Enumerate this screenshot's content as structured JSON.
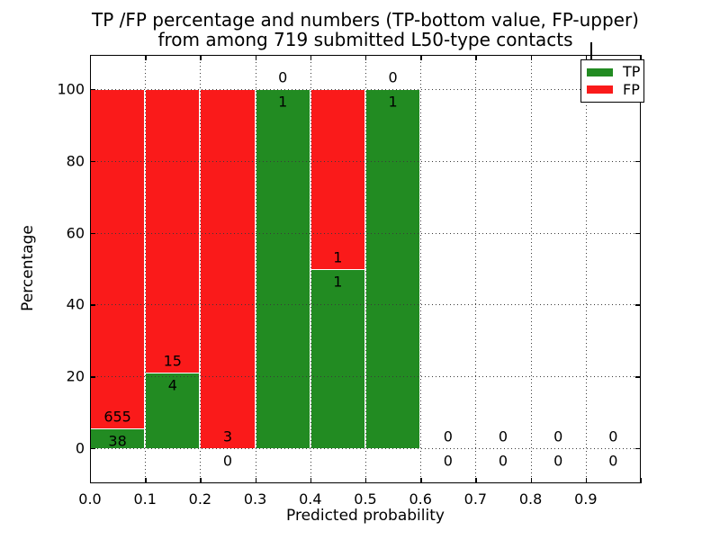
{
  "title": {
    "line1": "TP /FP percentage and numbers (TP-bottom value, FP-upper)",
    "line2": "from among 719 submitted L50-type contacts"
  },
  "chart_data": {
    "type": "bar",
    "stacked": true,
    "normalized": "percent",
    "title": "TP /FP percentage and numbers (TP-bottom value, FP-upper) from among 719 submitted L50-type contacts",
    "xlabel": "Predicted probability",
    "ylabel": "Percentage",
    "total_contacts": 719,
    "xlim": [
      0.0,
      1.0
    ],
    "ylim": [
      -9.6,
      109.8
    ],
    "grid": "dotted",
    "legend_position": "upper right",
    "x_tick_labels": [
      "0.0",
      "0.1",
      "0.2",
      "0.3",
      "0.4",
      "0.5",
      "0.6",
      "0.7",
      "0.8",
      "0.9"
    ],
    "y_ticks": [
      0,
      20,
      40,
      60,
      80,
      100
    ],
    "bins": [
      {
        "x_range": [
          0.0,
          0.1
        ],
        "tp": 38,
        "fp": 655
      },
      {
        "x_range": [
          0.1,
          0.2
        ],
        "tp": 4,
        "fp": 15
      },
      {
        "x_range": [
          0.2,
          0.3
        ],
        "tp": 0,
        "fp": 3
      },
      {
        "x_range": [
          0.3,
          0.4
        ],
        "tp": 1,
        "fp": 0
      },
      {
        "x_range": [
          0.4,
          0.5
        ],
        "tp": 1,
        "fp": 1
      },
      {
        "x_range": [
          0.5,
          0.6
        ],
        "tp": 1,
        "fp": 0
      },
      {
        "x_range": [
          0.6,
          0.7
        ],
        "tp": 0,
        "fp": 0
      },
      {
        "x_range": [
          0.7,
          0.8
        ],
        "tp": 0,
        "fp": 0
      },
      {
        "x_range": [
          0.8,
          0.9
        ],
        "tp": 0,
        "fp": 0
      },
      {
        "x_range": [
          0.9,
          1.0
        ],
        "tp": 0,
        "fp": 0
      }
    ],
    "legend": [
      {
        "label": "TP",
        "color": "#228B22"
      },
      {
        "label": "FP",
        "color": "#FA1A1A"
      }
    ]
  },
  "colors": {
    "tp_green": "#228B22",
    "fp_red": "#FA1A1A",
    "grid": "#3a3a3a",
    "text": "#000000",
    "background": "#ffffff"
  }
}
